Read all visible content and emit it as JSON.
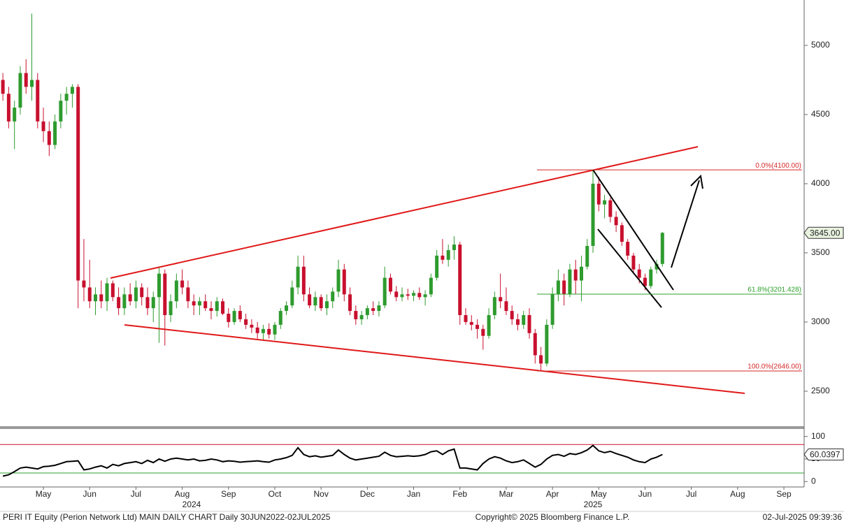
{
  "chart_data": {
    "type": "candlestick",
    "categories": [
      null,
      null,
      null,
      null,
      null,
      null,
      null,
      "May",
      null,
      null,
      null,
      null,
      null,
      null,
      null,
      "Jun",
      null,
      null,
      null,
      null,
      null,
      null,
      null,
      "Jul",
      null,
      null,
      null,
      null,
      null,
      null,
      null,
      "Aug",
      null,
      null,
      null,
      null,
      null,
      null,
      null,
      "Sep",
      null,
      null,
      null,
      null,
      null,
      null,
      null,
      "Oct",
      null,
      null,
      null,
      null,
      null,
      null,
      null,
      "Nov",
      null,
      null,
      null,
      null,
      null,
      null,
      null,
      "Dec",
      null,
      null,
      null,
      null,
      null,
      null,
      null,
      "Jan",
      null,
      null,
      null,
      null,
      null,
      null,
      null,
      "Feb",
      null,
      null,
      null,
      null,
      null,
      null,
      null,
      "Mar",
      null,
      null,
      null,
      null,
      null,
      null,
      null,
      "Apr",
      null,
      null,
      null,
      null,
      null,
      null,
      null,
      "May",
      null,
      null,
      null,
      null,
      null,
      null,
      null,
      "Jun",
      null,
      null,
      null,
      null,
      null,
      null,
      null,
      "Jul",
      null,
      null,
      null,
      null,
      null,
      null,
      null,
      "Aug",
      null,
      null,
      null,
      null,
      null,
      null,
      null,
      "Sep",
      null,
      null,
      null
    ],
    "years": [
      "2024",
      "2025"
    ],
    "ohlc": [
      [
        4750,
        4800,
        4600,
        4650
      ],
      [
        4650,
        4700,
        4400,
        4450
      ],
      [
        4450,
        4600,
        4250,
        4550
      ],
      [
        4550,
        4850,
        4500,
        4800
      ],
      [
        4800,
        4900,
        4650,
        4700
      ],
      [
        4700,
        5230,
        4600,
        4750
      ],
      [
        4750,
        4800,
        4400,
        4450
      ],
      [
        4450,
        4550,
        4300,
        4380
      ],
      [
        4380,
        4450,
        4200,
        4280
      ],
      [
        4280,
        4500,
        4250,
        4450
      ],
      [
        4450,
        4650,
        4400,
        4600
      ],
      [
        4600,
        4700,
        4500,
        4650
      ],
      [
        4650,
        4720,
        4550,
        4700
      ],
      [
        4700,
        4720,
        3100,
        3300
      ],
      [
        3300,
        3600,
        3150,
        3250
      ],
      [
        3250,
        3450,
        3100,
        3150
      ],
      [
        3150,
        3250,
        3050,
        3200
      ],
      [
        3200,
        3300,
        3100,
        3150
      ],
      [
        3150,
        3320,
        3080,
        3280
      ],
      [
        3280,
        3300,
        3150,
        3180
      ],
      [
        3180,
        3250,
        3050,
        3100
      ],
      [
        3100,
        3250,
        3050,
        3200
      ],
      [
        3200,
        3280,
        3120,
        3150
      ],
      [
        3150,
        3300,
        3100,
        3250
      ],
      [
        3250,
        3280,
        3120,
        3180
      ],
      [
        3180,
        3250,
        3050,
        3100
      ],
      [
        3100,
        3220,
        3000,
        3180
      ],
      [
        3180,
        3400,
        2850,
        3350
      ],
      [
        3350,
        3380,
        2830,
        3050
      ],
      [
        3050,
        3200,
        3000,
        3150
      ],
      [
        3150,
        3350,
        3100,
        3300
      ],
      [
        3300,
        3380,
        3200,
        3250
      ],
      [
        3250,
        3300,
        3100,
        3150
      ],
      [
        3150,
        3200,
        3050,
        3120
      ],
      [
        3120,
        3180,
        3050,
        3150
      ],
      [
        3150,
        3200,
        3080,
        3100
      ],
      [
        3100,
        3150,
        3020,
        3080
      ],
      [
        3080,
        3180,
        3040,
        3150
      ],
      [
        3150,
        3170,
        3050,
        3060
      ],
      [
        3060,
        3100,
        2960,
        3000
      ],
      [
        3000,
        3100,
        2980,
        3080
      ],
      [
        3080,
        3120,
        3000,
        3020
      ],
      [
        3020,
        3060,
        2950,
        2980
      ],
      [
        2980,
        3020,
        2920,
        2960
      ],
      [
        2960,
        3000,
        2880,
        2920
      ],
      [
        2920,
        2980,
        2870,
        2950
      ],
      [
        2950,
        2990,
        2880,
        2910
      ],
      [
        2910,
        3000,
        2870,
        2980
      ],
      [
        2980,
        3100,
        2950,
        3080
      ],
      [
        3080,
        3150,
        3050,
        3120
      ],
      [
        3120,
        3300,
        3100,
        3250
      ],
      [
        3250,
        3480,
        3200,
        3400
      ],
      [
        3400,
        3480,
        3150,
        3200
      ],
      [
        3200,
        3250,
        3100,
        3120
      ],
      [
        3120,
        3220,
        3080,
        3180
      ],
      [
        3180,
        3200,
        3080,
        3100
      ],
      [
        3100,
        3200,
        3050,
        3150
      ],
      [
        3150,
        3250,
        3100,
        3220
      ],
      [
        3220,
        3450,
        3180,
        3380
      ],
      [
        3380,
        3420,
        3150,
        3200
      ],
      [
        3200,
        3250,
        3050,
        3080
      ],
      [
        3080,
        3120,
        2980,
        3020
      ],
      [
        3020,
        3080,
        2980,
        3050
      ],
      [
        3050,
        3120,
        3020,
        3100
      ],
      [
        3100,
        3150,
        3050,
        3080
      ],
      [
        3080,
        3150,
        3040,
        3120
      ],
      [
        3120,
        3400,
        3100,
        3320
      ],
      [
        3320,
        3350,
        3200,
        3220
      ],
      [
        3220,
        3260,
        3150,
        3180
      ],
      [
        3180,
        3250,
        3150,
        3200
      ],
      [
        3200,
        3240,
        3160,
        3190
      ],
      [
        3190,
        3230,
        3150,
        3210
      ],
      [
        3210,
        3250,
        3160,
        3180
      ],
      [
        3180,
        3230,
        3120,
        3200
      ],
      [
        3200,
        3350,
        3180,
        3320
      ],
      [
        3320,
        3520,
        3300,
        3480
      ],
      [
        3480,
        3600,
        3420,
        3450
      ],
      [
        3450,
        3560,
        3400,
        3520
      ],
      [
        3520,
        3620,
        3450,
        3560
      ],
      [
        3560,
        3580,
        2980,
        3050
      ],
      [
        3050,
        3100,
        2980,
        3000
      ],
      [
        3000,
        3050,
        2940,
        2980
      ],
      [
        2980,
        3020,
        2880,
        2950
      ],
      [
        2950,
        2980,
        2800,
        2900
      ],
      [
        2900,
        3100,
        2880,
        3050
      ],
      [
        3050,
        3220,
        3020,
        3180
      ],
      [
        3180,
        3350,
        3100,
        3150
      ],
      [
        3150,
        3250,
        3050,
        3080
      ],
      [
        3080,
        3120,
        2980,
        3020
      ],
      [
        3020,
        3060,
        2940,
        2980
      ],
      [
        2980,
        3080,
        2950,
        3050
      ],
      [
        3050,
        3100,
        2880,
        2920
      ],
      [
        2920,
        2950,
        2700,
        2760
      ],
      [
        2760,
        2820,
        2646,
        2700
      ],
      [
        2700,
        3020,
        2680,
        2980
      ],
      [
        2980,
        3250,
        2950,
        3200
      ],
      [
        3200,
        3380,
        3150,
        3300
      ],
      [
        3300,
        3350,
        3120,
        3200
      ],
      [
        3200,
        3420,
        3180,
        3380
      ],
      [
        3380,
        3450,
        3200,
        3300
      ],
      [
        3300,
        3480,
        3150,
        3400
      ],
      [
        3400,
        3600,
        3380,
        3550
      ],
      [
        3550,
        4100,
        3500,
        4000
      ],
      [
        4000,
        4050,
        3800,
        3850
      ],
      [
        3850,
        3920,
        3750,
        3880
      ],
      [
        3880,
        3900,
        3720,
        3760
      ],
      [
        3760,
        3800,
        3650,
        3700
      ],
      [
        3700,
        3720,
        3550,
        3580
      ],
      [
        3580,
        3600,
        3450,
        3480
      ],
      [
        3480,
        3500,
        3350,
        3380
      ],
      [
        3380,
        3420,
        3280,
        3320
      ],
      [
        3320,
        3350,
        3230,
        3260
      ],
      [
        3260,
        3400,
        3240,
        3380
      ],
      [
        3380,
        3450,
        3350,
        3420
      ],
      [
        3420,
        3650,
        3400,
        3645
      ],
      null,
      null,
      null,
      null,
      null,
      null,
      null,
      null,
      null,
      null,
      null,
      null,
      null,
      null,
      null,
      null,
      null,
      null,
      null,
      null,
      null,
      null,
      null,
      null
    ],
    "up_color": "#2e9b2e",
    "down_color": "#c8102e",
    "ylim": [
      2247,
      5328
    ],
    "yticks": [
      2500,
      3000,
      3500,
      4000,
      4500,
      5000
    ],
    "last_close_label": "3645.00",
    "levels": [
      {
        "value": 4100,
        "label": "0.0%(4100.00)",
        "color": "#d62828"
      },
      {
        "value": 3201.428,
        "label": "61.8%(3201.428)",
        "color": "#2ca02c"
      },
      {
        "value": 2646,
        "label": "100.0%(2646.00)",
        "color": "#d62828"
      }
    ],
    "rsi": {
      "values": [
        12,
        15,
        22,
        30,
        32,
        30,
        28,
        33,
        34,
        36,
        40,
        44,
        45,
        46,
        26,
        28,
        32,
        35,
        30,
        38,
        35,
        40,
        42,
        44,
        40,
        47,
        42,
        50,
        45,
        50,
        52,
        50,
        48,
        50,
        46,
        47,
        50,
        48,
        44,
        46,
        45,
        43,
        44,
        45,
        46,
        44,
        43,
        48,
        50,
        53,
        58,
        75,
        60,
        55,
        57,
        54,
        56,
        58,
        70,
        60,
        52,
        48,
        50,
        52,
        54,
        56,
        65,
        58,
        55,
        56,
        57,
        56,
        57,
        60,
        66,
        68,
        60,
        68,
        72,
        30,
        30,
        28,
        26,
        40,
        50,
        55,
        52,
        46,
        42,
        44,
        48,
        40,
        32,
        38,
        50,
        58,
        60,
        56,
        62,
        60,
        64,
        70,
        80,
        68,
        64,
        67,
        62,
        58,
        54,
        48,
        44,
        42,
        50,
        54,
        60.0397,
        null,
        null,
        null,
        null,
        null,
        null,
        null,
        null,
        null,
        null,
        null,
        null,
        null,
        null,
        null,
        null,
        null,
        null,
        null,
        null,
        null,
        null,
        null,
        null
      ],
      "last_label": "60.0397",
      "color": "#000000",
      "ylim": [
        -12,
        115
      ],
      "yticks": [
        0,
        50,
        100
      ],
      "levels": [
        {
          "value": 82,
          "color": "#c8102e"
        },
        {
          "value": 19,
          "color": "#2ca02c"
        }
      ]
    },
    "footer": {
      "left": "PERI IT Equity (Perion Network Ltd) MAIN DAILY CHART  Daily 30JUN2022-02JUL2025",
      "center": "Copyright© 2025 Bloomberg Finance L.P.",
      "right": "02-Jul-2025 09:39:36"
    }
  }
}
